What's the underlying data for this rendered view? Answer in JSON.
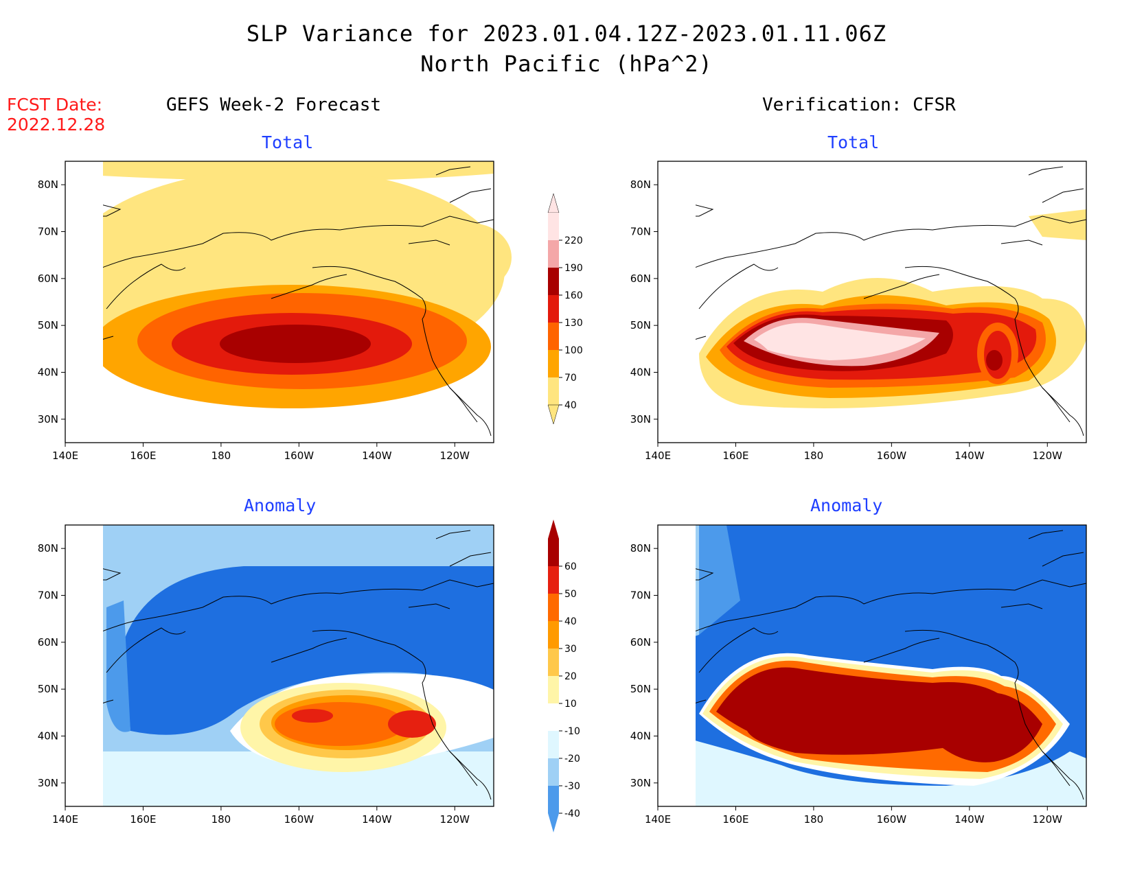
{
  "header": {
    "title_line1": "SLP Variance for 2023.01.04.12Z-2023.01.11.06Z",
    "title_line2": "North Pacific (hPa^2)",
    "fcst_label": "FCST Date:",
    "fcst_date": "2022.12.28",
    "left_column_title": "GEFS Week-2 Forecast",
    "right_column_title": "Verification: CFSR"
  },
  "colors": {
    "land_outline": "#000000",
    "total_scale": [
      "#ffffff",
      "#ffe57f",
      "#ffa500",
      "#ff6400",
      "#e31a0c",
      "#a80000",
      "#f4a7a8",
      "#ffe4e4"
    ],
    "anomaly_scale": [
      "#1e6fe0",
      "#4c9aeb",
      "#9fd0f5",
      "#dff7ff",
      "#ffffff",
      "#fff5a8",
      "#ffc84a",
      "#ff9a00",
      "#ff6a00",
      "#e62010",
      "#a80000"
    ]
  },
  "chart_data": [
    {
      "type": "heatmap",
      "panel": "forecast-total",
      "title": "Total",
      "xlabel": "",
      "ylabel": "",
      "x_ticks": [
        "140E",
        "160E",
        "180",
        "160W",
        "140W",
        "120W"
      ],
      "y_ticks": [
        "30N",
        "40N",
        "50N",
        "60N",
        "70N",
        "80N"
      ],
      "lon_range": [
        140,
        250
      ],
      "lat_range": [
        25,
        85
      ],
      "levels": [
        40,
        70,
        100,
        130,
        160,
        190,
        220
      ],
      "max_region": {
        "lon": 200,
        "lat": 45,
        "value_range": "160-190"
      }
    },
    {
      "type": "heatmap",
      "panel": "verification-total",
      "title": "Total",
      "xlabel": "",
      "ylabel": "",
      "x_ticks": [
        "140E",
        "160E",
        "180",
        "160W",
        "140W",
        "120W"
      ],
      "y_ticks": [
        "30N",
        "40N",
        "50N",
        "60N",
        "70N",
        "80N"
      ],
      "lon_range": [
        140,
        250
      ],
      "lat_range": [
        25,
        85
      ],
      "levels": [
        40,
        70,
        100,
        130,
        160,
        190,
        220
      ],
      "max_region": {
        "lon": 195,
        "lat": 45,
        "value_range": ">220"
      }
    },
    {
      "type": "heatmap",
      "panel": "forecast-anomaly",
      "title": "Anomaly",
      "xlabel": "",
      "ylabel": "",
      "x_ticks": [
        "140E",
        "160E",
        "180",
        "160W",
        "140W",
        "120W"
      ],
      "y_ticks": [
        "30N",
        "40N",
        "50N",
        "60N",
        "70N",
        "80N"
      ],
      "lon_range": [
        140,
        250
      ],
      "lat_range": [
        25,
        85
      ],
      "levels": [
        -40,
        -30,
        -20,
        -10,
        10,
        20,
        30,
        40,
        50,
        60
      ],
      "max_region": {
        "lon": 228,
        "lat": 41,
        "value_range": "50-60"
      }
    },
    {
      "type": "heatmap",
      "panel": "verification-anomaly",
      "title": "Anomaly",
      "xlabel": "",
      "ylabel": "",
      "x_ticks": [
        "140E",
        "160E",
        "180",
        "160W",
        "140W",
        "120W"
      ],
      "y_ticks": [
        "30N",
        "40N",
        "50N",
        "60N",
        "70N",
        "80N"
      ],
      "lon_range": [
        140,
        250
      ],
      "lat_range": [
        25,
        85
      ],
      "levels": [
        -40,
        -30,
        -20,
        -10,
        10,
        20,
        30,
        40,
        50,
        60
      ],
      "max_region": {
        "lon": 195,
        "lat": 43,
        "value_range": ">60"
      }
    }
  ],
  "colorbars": {
    "total": {
      "labels": [
        "220",
        "190",
        "160",
        "130",
        "100",
        "70",
        "40"
      ]
    },
    "anomaly": {
      "labels": [
        "60",
        "50",
        "40",
        "30",
        "20",
        "10",
        "-10",
        "-20",
        "-30",
        "-40"
      ]
    }
  }
}
